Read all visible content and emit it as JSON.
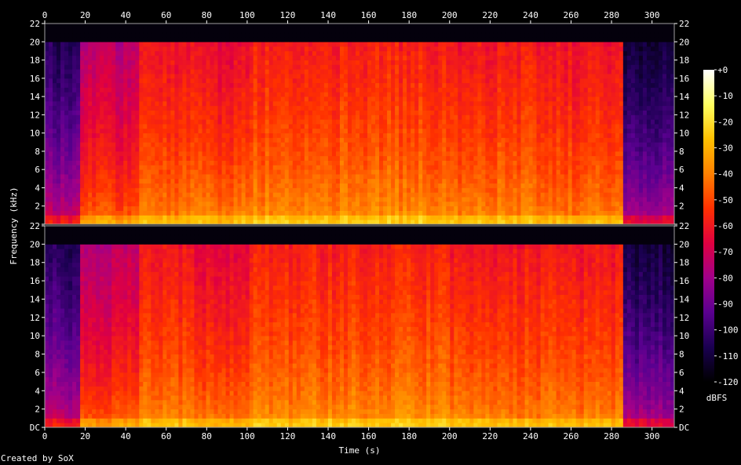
{
  "footer": "Created by SoX",
  "chart_data": {
    "type": "heatmap",
    "subtype": "spectrogram",
    "channels": 2,
    "xlabel": "Time (s)",
    "ylabel": "Frequency (kHz)",
    "xlim": [
      0,
      311
    ],
    "ylim": [
      0,
      22
    ],
    "x_ticks": [
      0,
      20,
      40,
      60,
      80,
      100,
      120,
      140,
      160,
      180,
      200,
      220,
      240,
      260,
      280,
      300
    ],
    "y_ticks": [
      "DC",
      "2",
      "4",
      "6",
      "8",
      "10",
      "12",
      "14",
      "16",
      "18",
      "20",
      "22"
    ],
    "colorbar": {
      "label": "dBFS",
      "range": [
        -120,
        0
      ],
      "ticks": [
        "+0",
        "-10",
        "-20",
        "-30",
        "-40",
        "-50",
        "-60",
        "-70",
        "-80",
        "-90",
        "-100",
        "-110",
        "-120"
      ],
      "colors": [
        "#000000",
        "#1a0050",
        "#5a0090",
        "#a0008a",
        "#e00040",
        "#ff3000",
        "#ff8000",
        "#ffc000",
        "#ffff60",
        "#ffffff"
      ]
    },
    "segments": [
      {
        "start": 0,
        "end": 17,
        "low_level": -65,
        "high_level": -105,
        "cutoff_khz": 20
      },
      {
        "start": 17,
        "end": 46,
        "low_level": -40,
        "high_level": -75,
        "cutoff_khz": 20
      },
      {
        "start": 46,
        "end": 74,
        "low_level": -35,
        "high_level": -62,
        "cutoff_khz": 20
      },
      {
        "start": 74,
        "end": 102,
        "low_level": -35,
        "high_level": -65,
        "cutoff_khz": 20
      },
      {
        "start": 102,
        "end": 145,
        "low_level": -32,
        "high_level": -58,
        "cutoff_khz": 20
      },
      {
        "start": 145,
        "end": 200,
        "low_level": -32,
        "high_level": -58,
        "cutoff_khz": 20
      },
      {
        "start": 200,
        "end": 228,
        "low_level": -33,
        "high_level": -60,
        "cutoff_khz": 20
      },
      {
        "start": 228,
        "end": 256,
        "low_level": -35,
        "high_level": -60,
        "cutoff_khz": 20
      },
      {
        "start": 256,
        "end": 286,
        "low_level": -36,
        "high_level": -62,
        "cutoff_khz": 20
      },
      {
        "start": 286,
        "end": 311,
        "low_level": -70,
        "high_level": -110,
        "cutoff_khz": 20
      }
    ]
  }
}
